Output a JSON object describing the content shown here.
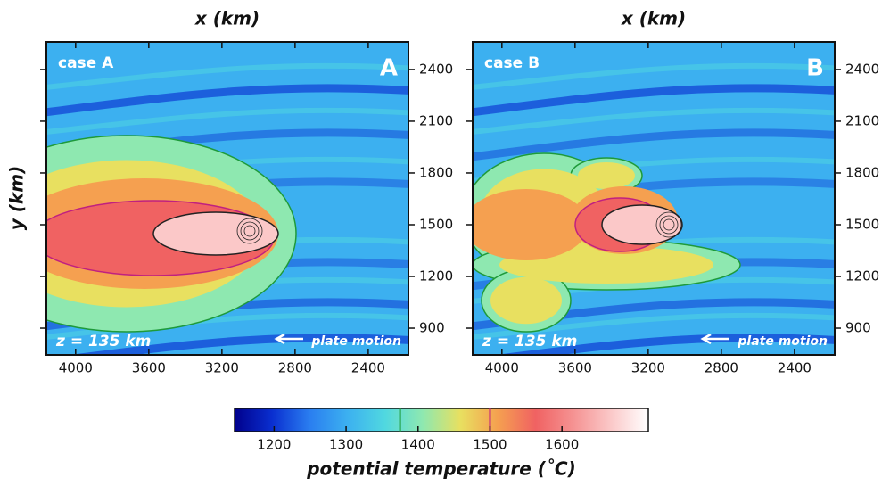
{
  "chart_data": [
    {
      "type": "heatmap",
      "title": "case A",
      "label": "A",
      "annotation": "z = 135 km",
      "arrow_label": "plate motion",
      "xlabel": "x (km)",
      "ylabel": "y (km)",
      "xlim": [
        4160,
        2180
      ],
      "xticks": [
        4000,
        3600,
        3200,
        2800,
        2400
      ],
      "ylim": [
        745,
        2560
      ],
      "yticks": [
        900,
        1200,
        1500,
        1800,
        2100,
        2400
      ]
    },
    {
      "type": "heatmap",
      "title": "case B",
      "label": "B",
      "annotation": "z = 135 km",
      "arrow_label": "plate motion",
      "xlabel": "x (km)",
      "xlim": [
        4160,
        2180
      ],
      "xticks": [
        4000,
        3600,
        3200,
        2800,
        2400
      ],
      "ylim": [
        745,
        2560
      ],
      "yticks": [
        900,
        1200,
        1500,
        1800,
        2100,
        2400
      ]
    }
  ],
  "colorbar": {
    "label": "potential temperature (˚C)",
    "lim": [
      1145,
      1720
    ],
    "ticks": [
      1200,
      1300,
      1400,
      1500,
      1600
    ],
    "contours": [
      {
        "value": 1375,
        "color": "#1e9a3a"
      },
      {
        "value": 1500,
        "color": "#c02080"
      }
    ],
    "colormap": [
      "#00008c",
      "#0a2fd0",
      "#2a7ef0",
      "#3cb0f0",
      "#50d8e0",
      "#8ee8b0",
      "#e8e060",
      "#f5a050",
      "#f06262",
      "#f59292",
      "#fbc8c8",
      "#ffffff"
    ]
  }
}
